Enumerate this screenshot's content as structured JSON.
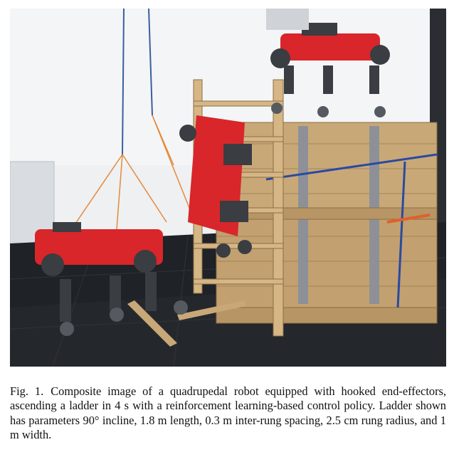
{
  "figure": {
    "image_description_name": "ladder-climbing-robot-photo"
  },
  "caption": {
    "label": "Fig. 1.",
    "text": "Composite image of a quadrupedal robot equipped with hooked end-effectors, ascending a ladder in 4 s with a reinforcement learning-based control policy. Ladder shown has parameters 90° incline, 1.8 m length, 0.3 m inter-rung spacing, 2.5 cm rung radius, and 1 m width."
  },
  "colors": {
    "robot_red": "#d8262b",
    "robot_dark": "#3a3d42",
    "wood": "#c9a878",
    "floor": "#1f2226",
    "wall": "#eef0f2"
  }
}
